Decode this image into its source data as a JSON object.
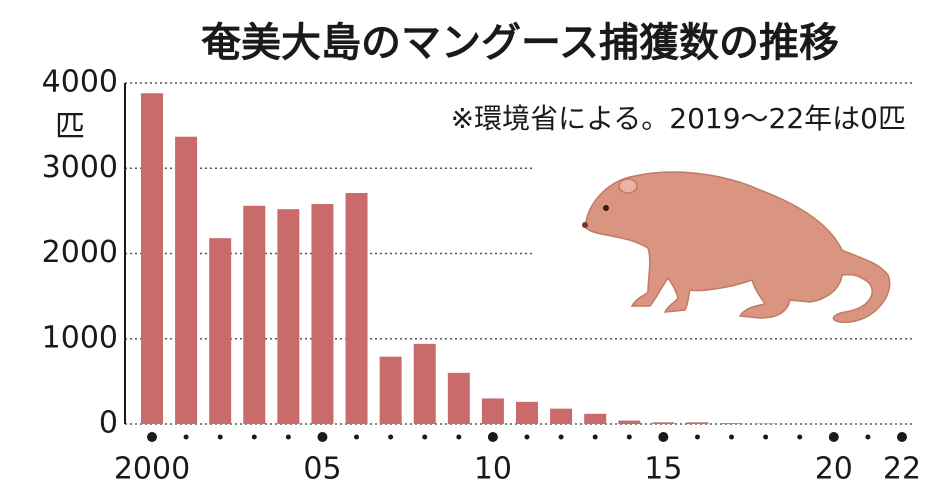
{
  "chart_data": {
    "type": "bar",
    "title": "奄美大島のマングース捕獲数の推移",
    "note": "※環境省による。2019〜22年は0匹",
    "y_unit": "匹",
    "categories": [
      "2000",
      null,
      null,
      null,
      null,
      "05",
      null,
      null,
      null,
      null,
      "10",
      null,
      null,
      null,
      null,
      "15",
      null,
      null,
      null,
      null,
      "20",
      null,
      "22"
    ],
    "values": [
      3880,
      3370,
      2180,
      2560,
      2520,
      2580,
      2710,
      790,
      940,
      600,
      300,
      260,
      180,
      120,
      40,
      20,
      20,
      10,
      5,
      0,
      0,
      0,
      0
    ],
    "color": "#c96b6b",
    "ylim": [
      0,
      4000
    ],
    "yticks": [
      0,
      1000,
      2000,
      3000,
      4000
    ],
    "grid": true
  }
}
